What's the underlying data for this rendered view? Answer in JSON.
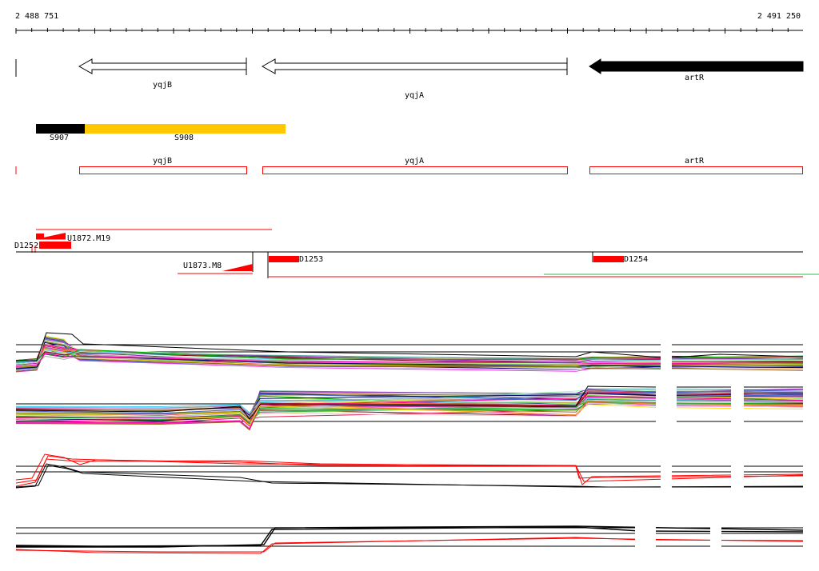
{
  "ruler": {
    "start_label": "2 488 751",
    "end_label": "2 491 250"
  },
  "genes": [
    {
      "name": "yqjB",
      "strand": "-",
      "filled": false
    },
    {
      "name": "yqjA",
      "strand": "-",
      "filled": false
    },
    {
      "name": "artR",
      "strand": "-",
      "filled": true
    }
  ],
  "segments": [
    {
      "name": "S907",
      "color": "#000000"
    },
    {
      "name": "S908",
      "color": "#ffc800"
    }
  ],
  "gene_boxes": [
    "yqjB",
    "yqjA",
    "artR"
  ],
  "features": [
    {
      "name": "U1872.M19"
    },
    {
      "name": "D1252"
    },
    {
      "name": "U1873.M8"
    },
    {
      "name": "D1253"
    },
    {
      "name": "D1254"
    }
  ],
  "colors": {
    "feature_red": "#ff0000",
    "segment_yellow": "#ffc800",
    "line_green": "#3cb44b"
  }
}
